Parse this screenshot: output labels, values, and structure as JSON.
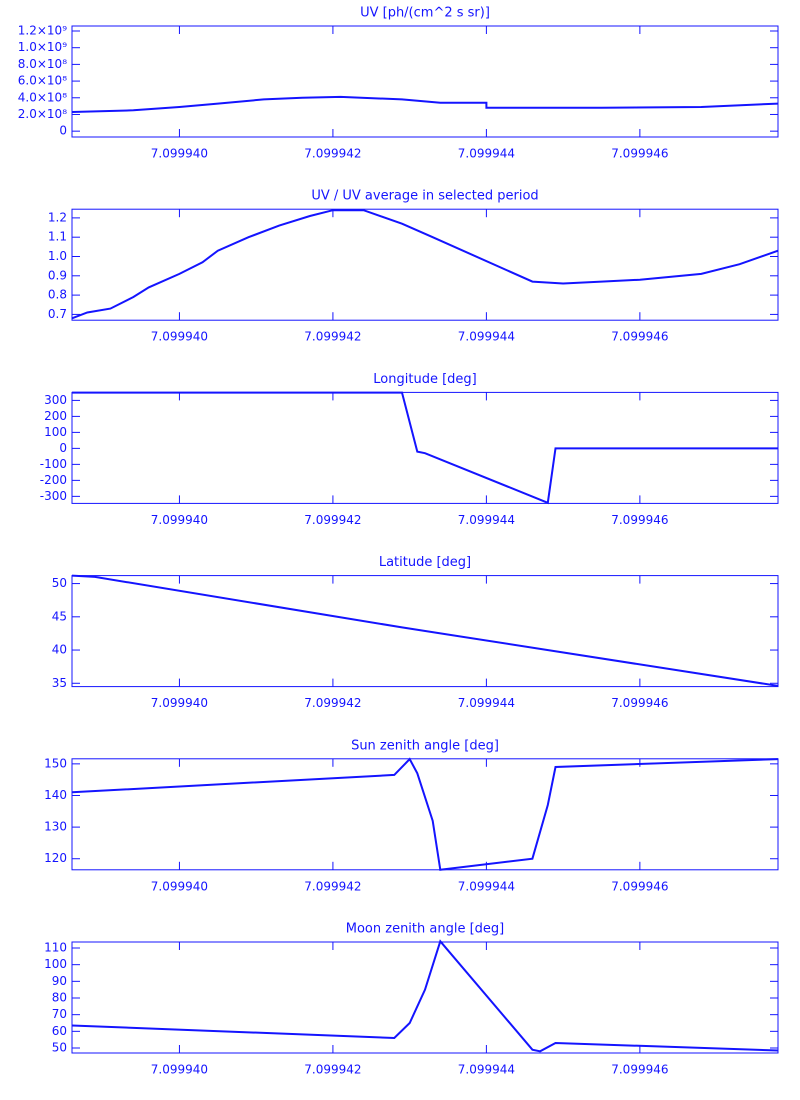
{
  "chart_data": [
    {
      "type": "line",
      "title": "UV [ph/(cm^2 s sr)]",
      "color": "#1414ff",
      "x": [
        7.0999386,
        7.0999394,
        7.09994,
        7.0999405,
        7.0999411,
        7.0999416,
        7.0999421,
        7.0999429,
        7.0999434,
        7.099944,
        7.099944,
        7.0999455,
        7.0999468,
        7.0999478
      ],
      "values": [
        230000000,
        250000000,
        290000000,
        330000000,
        380000000,
        400000000,
        410000000,
        380000000,
        340000000,
        340000000,
        280000000,
        280000000,
        290000000,
        330000000
      ],
      "xlim": [
        7.0999386,
        7.0999478
      ],
      "xticks": [
        {
          "value": 7.09994,
          "label": "7.099940"
        },
        {
          "value": 7.099942,
          "label": "7.099942"
        },
        {
          "value": 7.099944,
          "label": "7.099944"
        },
        {
          "value": 7.099946,
          "label": "7.099946"
        }
      ],
      "ylim": [
        -70000000,
        1260000000
      ],
      "yticks": [
        0,
        {
          "value": 200000000,
          "label": "2.0×10⁸"
        },
        {
          "value": 400000000,
          "label": "4.0×10⁸"
        },
        {
          "value": 600000000,
          "label": "6.0×10⁸"
        },
        {
          "value": 800000000,
          "label": "8.0×10⁸"
        },
        {
          "value": 1000000000,
          "label": "1.0×10⁹"
        },
        {
          "value": 1200000000,
          "label": "1.2×10⁹"
        }
      ]
    },
    {
      "type": "line",
      "title": "UV / UV average in selected period",
      "color": "#1414ff",
      "x": [
        7.0999386,
        7.0999388,
        7.0999391,
        7.0999394,
        7.0999396,
        7.09994,
        7.0999403,
        7.0999405,
        7.0999409,
        7.0999413,
        7.0999417,
        7.099942,
        7.0999424,
        7.0999429,
        7.0999433,
        7.0999446,
        7.099945,
        7.0999455,
        7.099946,
        7.0999468,
        7.0999473,
        7.0999478
      ],
      "values": [
        0.68,
        0.71,
        0.73,
        0.79,
        0.84,
        0.91,
        0.97,
        1.03,
        1.1,
        1.16,
        1.21,
        1.24,
        1.24,
        1.17,
        1.1,
        0.87,
        0.86,
        0.87,
        0.88,
        0.91,
        0.96,
        1.03
      ],
      "xlim": [
        7.0999386,
        7.0999478
      ],
      "xticks": [
        {
          "value": 7.09994,
          "label": "7.099940"
        },
        {
          "value": 7.099942,
          "label": "7.099942"
        },
        {
          "value": 7.099944,
          "label": "7.099944"
        },
        {
          "value": 7.099946,
          "label": "7.099946"
        }
      ],
      "ylim": [
        0.67,
        1.245
      ],
      "yticks": [
        0.7,
        0.8,
        0.9,
        {
          "value": 1,
          "label": "1.0"
        },
        1.1,
        1.2
      ]
    },
    {
      "type": "line",
      "title": "Longitude [deg]",
      "color": "#1414ff",
      "x": [
        7.0999386,
        7.0999429,
        7.0999431,
        7.0999432,
        7.0999448,
        7.0999449,
        7.0999478
      ],
      "values": [
        349,
        349,
        -20,
        -30,
        -340,
        0,
        0
      ],
      "xlim": [
        7.0999386,
        7.0999478
      ],
      "xticks": [
        {
          "value": 7.09994,
          "label": "7.099940"
        },
        {
          "value": 7.099942,
          "label": "7.099942"
        },
        {
          "value": 7.099944,
          "label": "7.099944"
        },
        {
          "value": 7.099946,
          "label": "7.099946"
        }
      ],
      "ylim": [
        -344,
        350
      ],
      "yticks": [
        -300,
        -200,
        -100,
        0,
        100,
        200,
        300
      ]
    },
    {
      "type": "line",
      "title": "Latitude [deg]",
      "color": "#1414ff",
      "x": [
        7.0999386,
        7.0999389,
        7.0999429,
        7.0999478
      ],
      "values": [
        51.2,
        51,
        43.4,
        34.6
      ],
      "xlim": [
        7.0999386,
        7.0999478
      ],
      "xticks": [
        {
          "value": 7.09994,
          "label": "7.099940"
        },
        {
          "value": 7.099942,
          "label": "7.099942"
        },
        {
          "value": 7.099944,
          "label": "7.099944"
        },
        {
          "value": 7.099946,
          "label": "7.099946"
        }
      ],
      "ylim": [
        34.5,
        51.2
      ],
      "yticks": [
        35,
        40,
        45,
        50
      ]
    },
    {
      "type": "line",
      "title": "Sun zenith angle [deg]",
      "color": "#1414ff",
      "x": [
        7.0999386,
        7.0999428,
        7.099943,
        7.0999431,
        7.0999433,
        7.0999434,
        7.0999446,
        7.0999448,
        7.0999449,
        7.0999478
      ],
      "values": [
        141,
        146.5,
        151.5,
        147,
        132,
        116.5,
        120,
        137,
        149,
        151.5
      ],
      "xlim": [
        7.0999386,
        7.0999478
      ],
      "xticks": [
        {
          "value": 7.09994,
          "label": "7.099940"
        },
        {
          "value": 7.099942,
          "label": "7.099942"
        },
        {
          "value": 7.099944,
          "label": "7.099944"
        },
        {
          "value": 7.099946,
          "label": "7.099946"
        }
      ],
      "ylim": [
        116.5,
        151.6
      ],
      "yticks": [
        120,
        130,
        140,
        150
      ]
    },
    {
      "type": "line",
      "title": "Moon zenith angle [deg]",
      "color": "#1414ff",
      "x": [
        7.0999386,
        7.0999428,
        7.099943,
        7.0999432,
        7.0999434,
        7.0999446,
        7.0999447,
        7.0999449,
        7.0999478
      ],
      "values": [
        63.5,
        56,
        65,
        85,
        114,
        49,
        48,
        53,
        48.5
      ],
      "xlim": [
        7.0999386,
        7.0999478
      ],
      "xticks": [
        {
          "value": 7.09994,
          "label": "7.099940"
        },
        {
          "value": 7.099942,
          "label": "7.099942"
        },
        {
          "value": 7.099944,
          "label": "7.099944"
        },
        {
          "value": 7.099946,
          "label": "7.099946"
        }
      ],
      "ylim": [
        47,
        113.6
      ],
      "yticks": [
        50,
        60,
        70,
        80,
        90,
        100,
        110
      ]
    }
  ]
}
